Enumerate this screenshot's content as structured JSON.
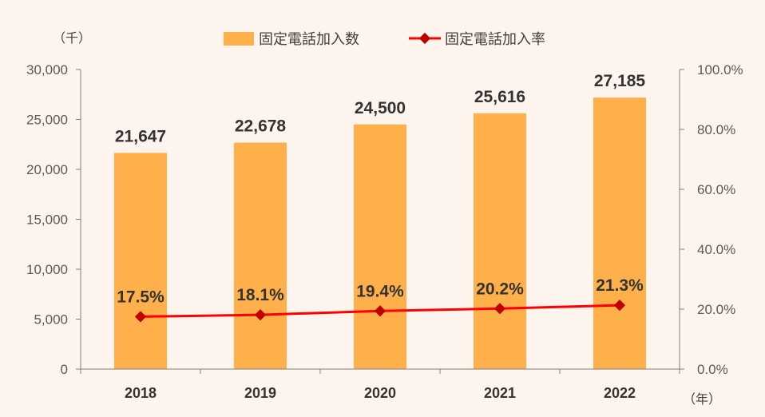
{
  "chart_data": {
    "type": "bar",
    "categories": [
      "2018",
      "2019",
      "2020",
      "2021",
      "2022"
    ],
    "series": [
      {
        "name": "固定電話加入数",
        "type": "bar",
        "axis": "left",
        "values": [
          21647,
          22678,
          24500,
          25616,
          27185
        ],
        "labels": [
          "21,647",
          "22,678",
          "24,500",
          "25,616",
          "27,185"
        ]
      },
      {
        "name": "固定電話加入率",
        "type": "line",
        "axis": "right",
        "values": [
          17.5,
          18.1,
          19.4,
          20.2,
          21.3
        ],
        "labels": [
          "17.5%",
          "18.1%",
          "19.4%",
          "20.2%",
          "21.3%"
        ]
      }
    ],
    "y_left": {
      "unit_label": "（千）",
      "ylim": [
        0,
        30000
      ],
      "ticks": [
        0,
        5000,
        10000,
        15000,
        20000,
        25000,
        30000
      ],
      "tick_labels": [
        "0",
        "5,000",
        "10,000",
        "15,000",
        "20,000",
        "25,000",
        "30,000"
      ]
    },
    "y_right": {
      "ylim": [
        0,
        100
      ],
      "ticks": [
        0,
        20,
        40,
        60,
        80,
        100
      ],
      "tick_labels": [
        "0.0%",
        "20.0%",
        "40.0%",
        "60.0%",
        "80.0%",
        "100.0%"
      ]
    },
    "x_unit_label": "（年）",
    "legend_position": "top-center",
    "grid": false,
    "colors": {
      "bar": "#ffb04b",
      "line": "#ff0000",
      "marker": "#c00000",
      "axis": "#7f7f7f",
      "background": "#fdf4ee"
    }
  }
}
